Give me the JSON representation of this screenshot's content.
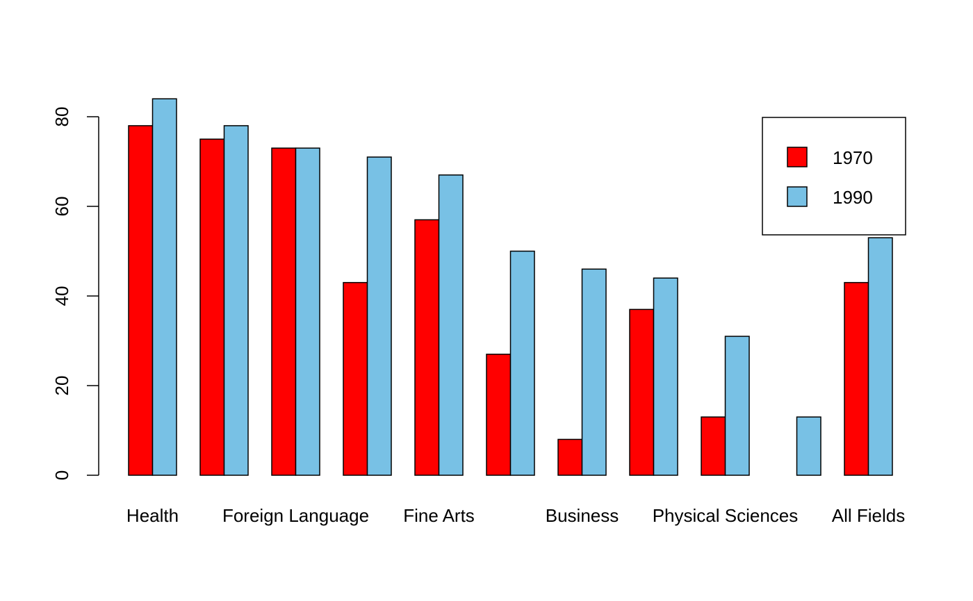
{
  "chart_data": {
    "type": "bar",
    "title": "",
    "xlabel": "",
    "ylabel": "",
    "ylim": [
      0,
      84
    ],
    "yticks": [
      0,
      20,
      40,
      60,
      80
    ],
    "grid": false,
    "legend_position": "top-right",
    "categories": [
      "Health",
      "",
      "Foreign Language",
      "",
      "Fine Arts",
      "",
      "Business",
      "",
      "Physical Sciences",
      "",
      "All Fields"
    ],
    "series": [
      {
        "name": "1970",
        "color": "#ff0000",
        "values": [
          78,
          75,
          73,
          43,
          57,
          27,
          8,
          37,
          13,
          0,
          43
        ]
      },
      {
        "name": "1990",
        "color": "#78c1e5",
        "values": [
          84,
          78,
          73,
          71,
          67,
          50,
          46,
          44,
          31,
          13,
          53
        ]
      }
    ]
  }
}
